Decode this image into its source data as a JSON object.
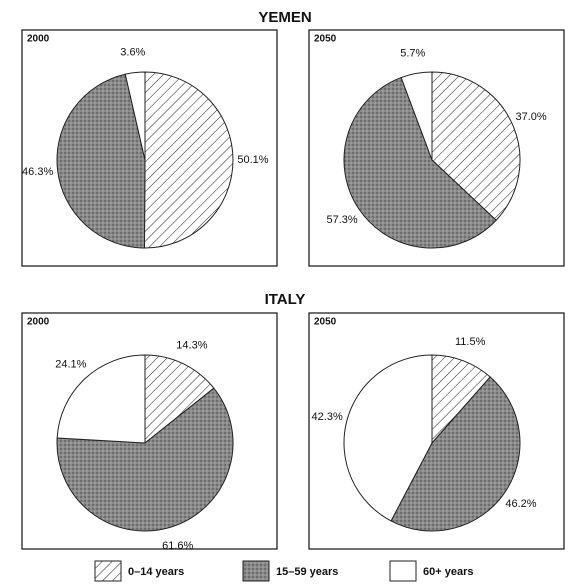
{
  "group_titles": [
    "YEMEN",
    "ITALY"
  ],
  "chart_data": [
    {
      "type": "pie",
      "title": "2000",
      "categories": [
        "0–14 years",
        "15–59 years",
        "60+ years"
      ],
      "values": [
        50.1,
        46.3,
        3.6
      ],
      "value_labels": [
        "50.1%",
        "46.3%",
        "3.6%"
      ],
      "fills": [
        "hatch",
        "stipple",
        "white"
      ]
    },
    {
      "type": "pie",
      "title": "2050",
      "categories": [
        "0–14 years",
        "15–59 years",
        "60+ years"
      ],
      "values": [
        37.0,
        57.3,
        5.7
      ],
      "value_labels": [
        "37.0%",
        "57.3%",
        "5.7%"
      ],
      "fills": [
        "hatch",
        "stipple",
        "white"
      ]
    },
    {
      "type": "pie",
      "title": "2000",
      "categories": [
        "0–14 years",
        "15–59 years",
        "60+ years"
      ],
      "values": [
        14.3,
        61.6,
        24.1
      ],
      "value_labels": [
        "14.3%",
        "61.6%",
        "24.1%"
      ],
      "fills": [
        "hatch",
        "stipple",
        "white"
      ]
    },
    {
      "type": "pie",
      "title": "2050",
      "categories": [
        "0–14 years",
        "15–59 years",
        "60+ years"
      ],
      "values": [
        11.5,
        46.2,
        42.3
      ],
      "value_labels": [
        "11.5%",
        "46.2%",
        "42.3%"
      ],
      "fills": [
        "hatch",
        "stipple",
        "white"
      ]
    }
  ]
}
